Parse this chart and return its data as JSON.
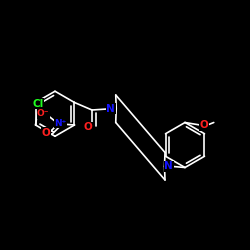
{
  "smiles": "O=C(c1ccc(Cl)cc1[N+](=O)[O-])N1CCN(c2ccccc2OC)CC1",
  "bg_color": "#000000",
  "bond_color": "#FFFFFF",
  "N_color": "#1515FF",
  "O_color": "#FF2020",
  "Cl_color": "#20FF20",
  "font_size": 7.5,
  "bond_width": 1.2
}
